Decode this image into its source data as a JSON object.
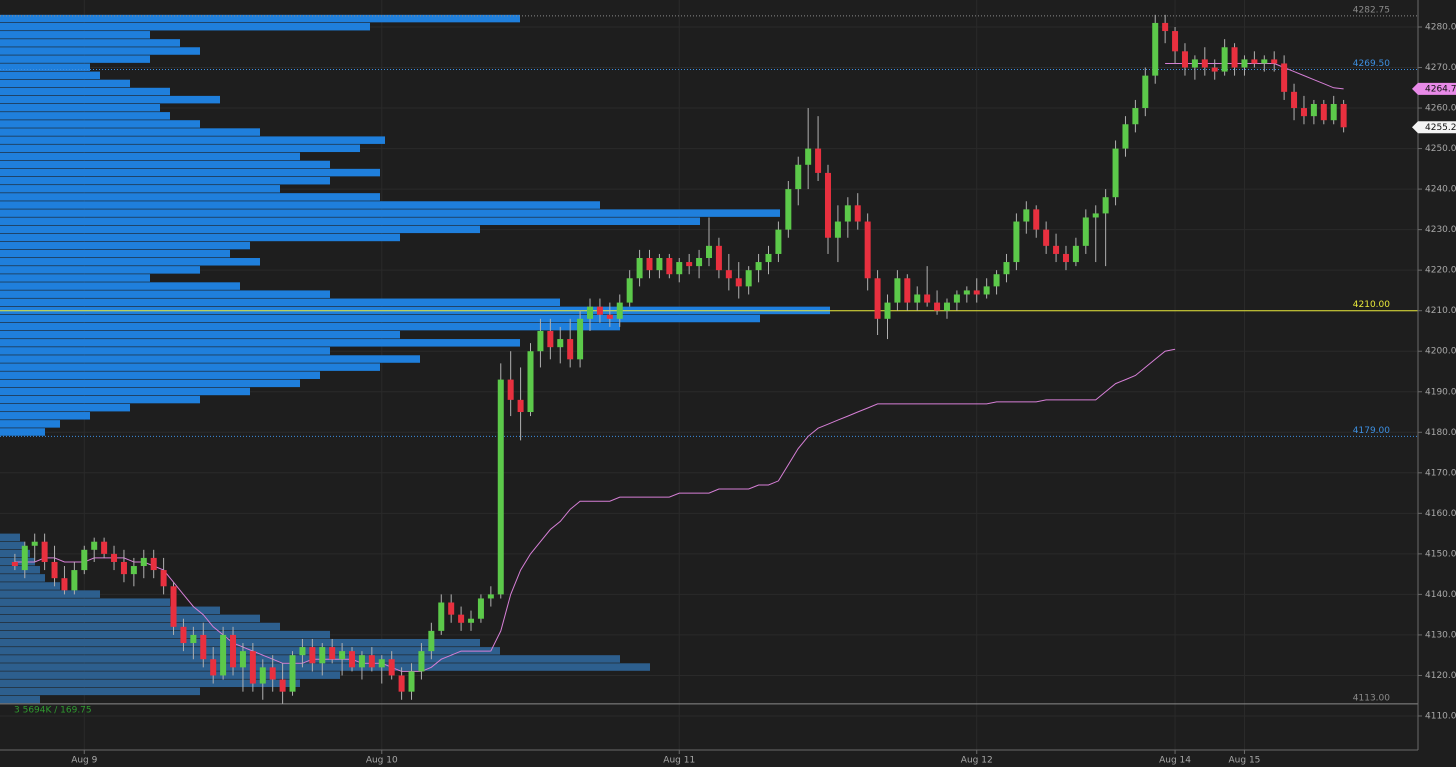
{
  "chart_data": {
    "type": "candlestick",
    "up_color": "#5cc94a",
    "down_color": "#e8303f",
    "wick_color": "#b0b0b0",
    "xlim": [
      -1.5,
      141.5
    ],
    "ylim": [
      4102.84,
      4286.66
    ],
    "xticks": [
      {
        "value": 7,
        "label": "Aug 9"
      },
      {
        "value": 37,
        "label": "Aug 10"
      },
      {
        "value": 67,
        "label": "Aug 11"
      },
      {
        "value": 97,
        "label": "Aug 12"
      },
      {
        "value": 117,
        "label": "Aug 14"
      },
      {
        "value": 124,
        "label": "Aug 15"
      }
    ],
    "yticks": [
      {
        "value": 4110,
        "label": "4110.00"
      },
      {
        "value": 4120,
        "label": "4120.00"
      },
      {
        "value": 4130,
        "label": "4130.00"
      },
      {
        "value": 4140,
        "label": "4140.00"
      },
      {
        "value": 4150,
        "label": "4150.00"
      },
      {
        "value": 4160,
        "label": "4160.00"
      },
      {
        "value": 4170,
        "label": "4170.00"
      },
      {
        "value": 4180,
        "label": "4180.00"
      },
      {
        "value": 4190,
        "label": "4190.00"
      },
      {
        "value": 4200,
        "label": "4200.00"
      },
      {
        "value": 4210,
        "label": "4210.00"
      },
      {
        "value": 4220,
        "label": "4220.00"
      },
      {
        "value": 4230,
        "label": "4230.00"
      },
      {
        "value": 4240,
        "label": "4240.00"
      },
      {
        "value": 4250,
        "label": "4250.00"
      },
      {
        "value": 4260,
        "label": "4260.00"
      },
      {
        "value": 4270,
        "label": "4270.00"
      },
      {
        "value": 4280,
        "label": "4280.00"
      }
    ],
    "grid": true,
    "ohlc": [
      [
        4148,
        4150,
        4146,
        4147
      ],
      [
        4146,
        4153,
        4144,
        4152
      ],
      [
        4152,
        4155,
        4148,
        4153
      ],
      [
        4153,
        4155,
        4146,
        4148
      ],
      [
        4148,
        4152,
        4142,
        4144
      ],
      [
        4144,
        4147,
        4140,
        4141
      ],
      [
        4141,
        4148,
        4140,
        4146
      ],
      [
        4146,
        4152,
        4145,
        4151
      ],
      [
        4151,
        4154,
        4148,
        4153
      ],
      [
        4153,
        4154,
        4149,
        4150
      ],
      [
        4150,
        4152,
        4146,
        4148
      ],
      [
        4148,
        4151,
        4143,
        4145
      ],
      [
        4145,
        4149,
        4142,
        4147
      ],
      [
        4147,
        4151,
        4144,
        4149
      ],
      [
        4149,
        4151,
        4144,
        4146
      ],
      [
        4146,
        4149,
        4140,
        4142
      ],
      [
        4142,
        4143,
        4130,
        4132
      ],
      [
        4132,
        4134,
        4126,
        4128
      ],
      [
        4128,
        4132,
        4124,
        4130
      ],
      [
        4130,
        4133,
        4122,
        4124
      ],
      [
        4124,
        4127,
        4118,
        4120
      ],
      [
        4120,
        4132,
        4119,
        4130
      ],
      [
        4130,
        4132,
        4120,
        4122
      ],
      [
        4122,
        4128,
        4116,
        4126
      ],
      [
        4126,
        4128,
        4116,
        4118
      ],
      [
        4118,
        4124,
        4114,
        4122
      ],
      [
        4122,
        4125,
        4116,
        4119
      ],
      [
        4119,
        4123,
        4113,
        4116
      ],
      [
        4116,
        4126,
        4115,
        4125
      ],
      [
        4125,
        4129,
        4122,
        4127
      ],
      [
        4127,
        4129,
        4121,
        4123
      ],
      [
        4123,
        4128,
        4120,
        4127
      ],
      [
        4127,
        4129,
        4123,
        4124
      ],
      [
        4124,
        4128,
        4120,
        4126
      ],
      [
        4126,
        4127,
        4121,
        4122
      ],
      [
        4122,
        4126,
        4119,
        4125
      ],
      [
        4125,
        4127,
        4121,
        4122
      ],
      [
        4122,
        4125,
        4118,
        4124
      ],
      [
        4124,
        4126,
        4119,
        4120
      ],
      [
        4120,
        4122,
        4114,
        4116
      ],
      [
        4116,
        4123,
        4114,
        4121
      ],
      [
        4121,
        4128,
        4119,
        4126
      ],
      [
        4126,
        4133,
        4124,
        4131
      ],
      [
        4131,
        4140,
        4130,
        4138
      ],
      [
        4138,
        4140,
        4133,
        4135
      ],
      [
        4135,
        4137,
        4131,
        4133
      ],
      [
        4133,
        4136,
        4131,
        4134
      ],
      [
        4134,
        4140,
        4133,
        4139
      ],
      [
        4139,
        4142,
        4137,
        4140
      ],
      [
        4140,
        4197,
        4139,
        4193
      ],
      [
        4193,
        4200,
        4184,
        4188
      ],
      [
        4188,
        4196,
        4178,
        4185
      ],
      [
        4185,
        4202,
        4184,
        4200
      ],
      [
        4200,
        4208,
        4196,
        4205
      ],
      [
        4205,
        4208,
        4198,
        4201
      ],
      [
        4201,
        4206,
        4197,
        4203
      ],
      [
        4203,
        4208,
        4196,
        4198
      ],
      [
        4198,
        4210,
        4196,
        4208
      ],
      [
        4208,
        4213,
        4205,
        4211
      ],
      [
        4211,
        4213,
        4207,
        4209
      ],
      [
        4209,
        4212,
        4206,
        4208
      ],
      [
        4208,
        4214,
        4206,
        4212
      ],
      [
        4212,
        4220,
        4211,
        4218
      ],
      [
        4218,
        4225,
        4216,
        4223
      ],
      [
        4223,
        4225,
        4218,
        4220
      ],
      [
        4220,
        4224,
        4218,
        4223
      ],
      [
        4223,
        4224,
        4218,
        4219
      ],
      [
        4219,
        4223,
        4217,
        4222
      ],
      [
        4222,
        4224,
        4219,
        4221
      ],
      [
        4221,
        4225,
        4218,
        4223
      ],
      [
        4223,
        4233,
        4221,
        4226
      ],
      [
        4226,
        4228,
        4218,
        4220
      ],
      [
        4220,
        4224,
        4215,
        4218
      ],
      [
        4218,
        4222,
        4213,
        4216
      ],
      [
        4216,
        4221,
        4214,
        4220
      ],
      [
        4220,
        4224,
        4217,
        4222
      ],
      [
        4222,
        4226,
        4219,
        4224
      ],
      [
        4224,
        4232,
        4222,
        4230
      ],
      [
        4230,
        4242,
        4228,
        4240
      ],
      [
        4240,
        4248,
        4236,
        4246
      ],
      [
        4246,
        4260,
        4240,
        4250
      ],
      [
        4250,
        4258,
        4242,
        4244
      ],
      [
        4244,
        4246,
        4224,
        4228
      ],
      [
        4228,
        4236,
        4222,
        4232
      ],
      [
        4232,
        4238,
        4228,
        4236
      ],
      [
        4236,
        4239,
        4230,
        4232
      ],
      [
        4232,
        4234,
        4215,
        4218
      ],
      [
        4218,
        4220,
        4204,
        4208
      ],
      [
        4208,
        4214,
        4203,
        4212
      ],
      [
        4212,
        4220,
        4210,
        4218
      ],
      [
        4218,
        4219,
        4210,
        4212
      ],
      [
        4212,
        4216,
        4210,
        4214
      ],
      [
        4214,
        4221,
        4211,
        4212
      ],
      [
        4212,
        4215,
        4209,
        4210
      ],
      [
        4210,
        4213,
        4208,
        4212
      ],
      [
        4212,
        4215,
        4210,
        4214
      ],
      [
        4214,
        4216,
        4212,
        4215
      ],
      [
        4215,
        4218,
        4212,
        4214
      ],
      [
        4214,
        4218,
        4213,
        4216
      ],
      [
        4216,
        4220,
        4214,
        4219
      ],
      [
        4219,
        4224,
        4217,
        4222
      ],
      [
        4222,
        4234,
        4220,
        4232
      ],
      [
        4232,
        4237,
        4229,
        4235
      ],
      [
        4235,
        4236,
        4228,
        4230
      ],
      [
        4230,
        4232,
        4224,
        4226
      ],
      [
        4226,
        4229,
        4222,
        4224
      ],
      [
        4224,
        4226,
        4220,
        4222
      ],
      [
        4222,
        4228,
        4221,
        4226
      ],
      [
        4226,
        4235,
        4224,
        4233
      ],
      [
        4233,
        4236,
        4222,
        4234
      ],
      [
        4234,
        4240,
        4221,
        4238
      ],
      [
        4238,
        4252,
        4236,
        4250
      ],
      [
        4250,
        4258,
        4248,
        4256
      ],
      [
        4256,
        4262,
        4254,
        4260
      ],
      [
        4260,
        4270,
        4258,
        4268
      ],
      [
        4268,
        4283,
        4266,
        4281
      ],
      [
        4281,
        4283,
        4276,
        4279
      ],
      [
        4279,
        4280,
        4271,
        4274
      ],
      [
        4274,
        4276,
        4268,
        4270
      ],
      [
        4270,
        4273,
        4267,
        4272
      ],
      [
        4272,
        4275,
        4268,
        4270
      ],
      [
        4270,
        4272,
        4267,
        4269
      ],
      [
        4269,
        4277,
        4268,
        4275
      ],
      [
        4275,
        4276,
        4268,
        4270
      ],
      [
        4270,
        4273,
        4268,
        4272
      ],
      [
        4272,
        4274,
        4270,
        4271
      ],
      [
        4271,
        4273,
        4269,
        4272
      ],
      [
        4272,
        4274,
        4269,
        4271
      ],
      [
        4271,
        4273,
        4262,
        4264
      ],
      [
        4264,
        4266,
        4257,
        4260
      ],
      [
        4260,
        4263,
        4256,
        4258
      ],
      [
        4258,
        4262,
        4256,
        4261
      ],
      [
        4261,
        4262,
        4256,
        4257
      ],
      [
        4257,
        4263,
        4256,
        4261
      ],
      [
        4261,
        4262,
        4254,
        4255.25
      ]
    ],
    "lines": [
      {
        "color": "#d67fd6",
        "values": [
          4148,
          4148,
          4148,
          4149,
          4149,
          4148,
          4148,
          4148,
          4149,
          4149,
          4149,
          4149,
          4148,
          4148,
          4147,
          4146,
          4143,
          4140,
          4137,
          4135,
          4132,
          4130,
          4128,
          4127,
          4126,
          4125,
          4124,
          4123,
          4123,
          4123,
          4124,
          4124,
          4124,
          4124,
          4124,
          4123,
          4123,
          4123,
          4122,
          4121,
          4121,
          4121,
          4122,
          4124,
          4125,
          4126,
          4126,
          4126,
          4126,
          null,
          null,
          null,
          null,
          null,
          null,
          null,
          null,
          null,
          null,
          null,
          null,
          null,
          null,
          null,
          null,
          null,
          null,
          null,
          null,
          null,
          null,
          null,
          null,
          null,
          null,
          null,
          null,
          null,
          null,
          null,
          null,
          null,
          null,
          null,
          null,
          null,
          null,
          null,
          null,
          null,
          null,
          null,
          null,
          null,
          null,
          null,
          null,
          null,
          null,
          null,
          null,
          null,
          null,
          null,
          null,
          null,
          null,
          null,
          null,
          null,
          null,
          null,
          null,
          null,
          null,
          null,
          4271,
          4271,
          4271,
          4271,
          4271,
          4271,
          4271,
          4271,
          4271,
          4271,
          4271,
          4271,
          4270,
          4269,
          4268,
          4267,
          4266,
          4265,
          4264.72
        ]
      },
      {
        "color": "#d67fd6",
        "values": [
          null,
          null,
          null,
          null,
          null,
          null,
          null,
          null,
          null,
          null,
          null,
          null,
          null,
          null,
          null,
          null,
          null,
          null,
          null,
          null,
          null,
          null,
          null,
          null,
          null,
          null,
          null,
          null,
          null,
          null,
          null,
          null,
          null,
          null,
          null,
          null,
          null,
          null,
          null,
          null,
          null,
          null,
          null,
          null,
          null,
          null,
          null,
          null,
          4126,
          4131,
          4140,
          4146,
          4150,
          4153,
          4156,
          4158,
          4161,
          4163,
          4163,
          4163,
          4163,
          4164,
          4164,
          4164,
          4164,
          4164,
          4164,
          4165,
          4165,
          4165,
          4165,
          4166,
          4166,
          4166,
          4166,
          4167,
          4167,
          4168,
          4172,
          4176,
          4179,
          4181,
          4182,
          4183,
          4184,
          4185,
          4186,
          4187,
          4187,
          4187,
          4187,
          4187,
          4187,
          4187,
          4187,
          4187,
          4187,
          4187,
          4187,
          4187.5,
          4187.5,
          4187.5,
          4187.5,
          4187.5,
          4188,
          4188,
          4188,
          4188,
          4188,
          4188,
          4190,
          4192,
          4193,
          4194,
          4196,
          4198,
          4200,
          4200.5,
          null,
          null,
          null,
          null,
          null,
          null,
          null,
          null,
          null,
          null,
          null,
          null,
          null,
          null,
          null,
          null,
          null
        ]
      }
    ],
    "profile_xlim": [
      0,
      1418
    ],
    "profiles": [
      {
        "color": "#1f7fdc",
        "bins": [
          4179,
          4181,
          4183,
          4185,
          4187,
          4189,
          4191,
          4193,
          4195,
          4197,
          4199,
          4201,
          4203,
          4205,
          4207,
          4209,
          4211,
          4213,
          4215,
          4217,
          4219,
          4221,
          4223,
          4225,
          4227,
          4229,
          4231,
          4233,
          4235,
          4237,
          4239,
          4241,
          4243,
          4245,
          4247,
          4249,
          4251,
          4253,
          4255,
          4257,
          4259,
          4261,
          4263,
          4265,
          4267,
          4269,
          4271,
          4273,
          4275,
          4277,
          4279,
          4281,
          4283
        ],
        "volumes": [
          45,
          60,
          90,
          130,
          200,
          250,
          300,
          320,
          380,
          420,
          330,
          520,
          400,
          620,
          760,
          830,
          560,
          330,
          240,
          150,
          200,
          260,
          230,
          250,
          400,
          480,
          700,
          780,
          600,
          380,
          280,
          330,
          380,
          330,
          300,
          360,
          385,
          260,
          200,
          170,
          160,
          220,
          170,
          130,
          100,
          90,
          150,
          200,
          180,
          150,
          370,
          520
        ]
      },
      {
        "color": "#2d5f8e",
        "bins": [
          4113,
          4115,
          4117,
          4119,
          4121,
          4123,
          4125,
          4127,
          4129,
          4131,
          4133,
          4135,
          4137,
          4139,
          4141,
          4143,
          4145,
          4147,
          4149,
          4151,
          4153,
          4155
        ],
        "volumes": [
          40,
          200,
          300,
          340,
          650,
          620,
          500,
          480,
          330,
          280,
          260,
          220,
          170,
          100,
          60,
          45,
          40,
          35,
          30,
          25,
          20
        ]
      }
    ],
    "levels": [
      {
        "value": 4282.75,
        "label": "4282.75",
        "color": "#8a8a8a",
        "style": "dotted"
      },
      {
        "value": 4269.5,
        "label": "4269.50",
        "color": "#3d8fe0",
        "style": "dotted"
      },
      {
        "value": 4210,
        "label": "4210.00",
        "color": "#e8e83a",
        "style": "solid"
      },
      {
        "value": 4179,
        "label": "4179.00",
        "color": "#3d8fe0",
        "style": "dotted"
      },
      {
        "value": 4113,
        "label": "4113.00",
        "color": "#8a8a8a",
        "style": "solid"
      }
    ],
    "price_tags": [
      {
        "value": 4264.72,
        "color": "#e88ae8"
      },
      {
        "value": 4255.25,
        "color": "#f4f4f4"
      }
    ],
    "footer_text": "3   5694K / 169.75"
  }
}
